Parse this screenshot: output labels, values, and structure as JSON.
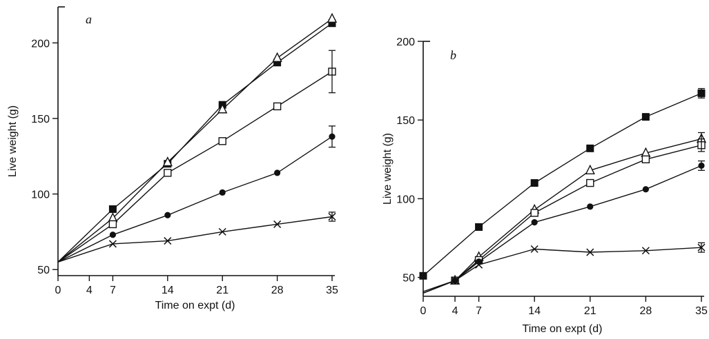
{
  "chart_data": [
    {
      "type": "line",
      "panel_label": "a",
      "xlabel": "Time on expt (d)",
      "ylabel": "Live weight (g)",
      "x_ticks": [
        0,
        4,
        7,
        14,
        21,
        28,
        35
      ],
      "y_ticks": [
        50,
        100,
        150,
        200
      ],
      "xlim": [
        0,
        35
      ],
      "ylim": [
        46,
        222
      ],
      "grid": false,
      "series": [
        {
          "marker": "filled-square",
          "x": [
            0,
            7,
            14,
            21,
            28,
            35
          ],
          "y": [
            55,
            90,
            120,
            159,
            187,
            213
          ]
        },
        {
          "marker": "open-triangle",
          "x": [
            0,
            7,
            14,
            21,
            28,
            35
          ],
          "y": [
            55,
            84,
            121,
            156,
            190,
            216
          ]
        },
        {
          "marker": "open-square",
          "x": [
            0,
            7,
            14,
            21,
            28,
            35
          ],
          "y": [
            55,
            80,
            114,
            135,
            158,
            181
          ],
          "error": [
            null,
            null,
            null,
            null,
            null,
            14
          ]
        },
        {
          "marker": "filled-circle",
          "x": [
            0,
            7,
            14,
            21,
            28,
            35
          ],
          "y": [
            55,
            73,
            86,
            101,
            114,
            138
          ],
          "error": [
            null,
            null,
            null,
            null,
            null,
            7
          ]
        },
        {
          "marker": "cross",
          "x": [
            0,
            7,
            14,
            21,
            28,
            35
          ],
          "y": [
            55,
            67,
            69,
            75,
            80,
            85
          ],
          "error": [
            null,
            null,
            null,
            null,
            null,
            3
          ]
        }
      ]
    },
    {
      "type": "line",
      "panel_label": "b",
      "xlabel": "Time on expt (d)",
      "ylabel": "Live weight (g)",
      "x_ticks": [
        0,
        4,
        7,
        14,
        21,
        28,
        35
      ],
      "y_ticks": [
        50,
        100,
        150,
        200
      ],
      "xlim": [
        0,
        35
      ],
      "ylim": [
        38,
        200
      ],
      "grid": false,
      "series": [
        {
          "marker": "filled-square",
          "x": [
            0,
            7,
            14,
            21,
            28,
            35
          ],
          "y": [
            51,
            82,
            110,
            132,
            152,
            167
          ],
          "error": [
            null,
            null,
            null,
            null,
            null,
            3
          ]
        },
        {
          "marker": "open-triangle",
          "x": [
            0,
            4,
            7,
            14,
            21,
            28,
            35
          ],
          "y": [
            40,
            48,
            63,
            93,
            118,
            129,
            138
          ],
          "error": [
            null,
            null,
            null,
            null,
            null,
            null,
            4
          ]
        },
        {
          "marker": "open-square",
          "x": [
            0,
            4,
            7,
            14,
            21,
            28,
            35
          ],
          "y": [
            40,
            48,
            61,
            91,
            110,
            125,
            134
          ],
          "error": [
            null,
            null,
            null,
            null,
            null,
            null,
            4
          ]
        },
        {
          "marker": "filled-circle",
          "x": [
            0,
            4,
            7,
            14,
            21,
            28,
            35
          ],
          "y": [
            40,
            48,
            60,
            85,
            95,
            106,
            121
          ],
          "error": [
            null,
            null,
            null,
            null,
            null,
            null,
            3
          ]
        },
        {
          "marker": "cross",
          "x": [
            0,
            4,
            7,
            14,
            21,
            28,
            35
          ],
          "y": [
            41,
            48,
            58,
            68,
            66,
            67,
            69
          ],
          "error": [
            null,
            null,
            null,
            null,
            null,
            null,
            3
          ]
        }
      ]
    }
  ]
}
